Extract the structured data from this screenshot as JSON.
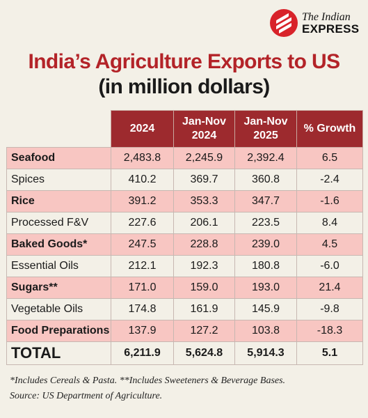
{
  "brand": {
    "line1": "The Indian",
    "line2": "EXPRESS"
  },
  "chart_data": {
    "type": "table",
    "title": "India’s Agriculture Exports to US",
    "subtitle": "(in million dollars)",
    "columns": [
      "2024",
      "Jan-Nov 2024",
      "Jan-Nov 2025",
      "% Growth"
    ],
    "rows": [
      {
        "label": "Seafood",
        "values": [
          "2,483.8",
          "2,245.9",
          "2,392.4",
          "6.5"
        ]
      },
      {
        "label": "Spices",
        "values": [
          "410.2",
          "369.7",
          "360.8",
          "-2.4"
        ]
      },
      {
        "label": "Rice",
        "values": [
          "391.2",
          "353.3",
          "347.7",
          "-1.6"
        ]
      },
      {
        "label": "Processed F&V",
        "values": [
          "227.6",
          "206.1",
          "223.5",
          "8.4"
        ]
      },
      {
        "label": "Baked Goods*",
        "values": [
          "247.5",
          "228.8",
          "239.0",
          "4.5"
        ]
      },
      {
        "label": "Essential Oils",
        "values": [
          "212.1",
          "192.3",
          "180.8",
          "-6.0"
        ]
      },
      {
        "label": "Sugars**",
        "values": [
          "171.0",
          "159.0",
          "193.0",
          "21.4"
        ]
      },
      {
        "label": "Vegetable Oils",
        "values": [
          "174.8",
          "161.9",
          "145.9",
          "-9.8"
        ]
      },
      {
        "label": "Food Preparations",
        "values": [
          "137.9",
          "127.2",
          "103.8",
          "-18.3"
        ]
      }
    ],
    "total": {
      "label": "TOTAL",
      "values": [
        "6,211.9",
        "5,624.8",
        "5,914.3",
        "5.1"
      ]
    }
  },
  "notes": {
    "footnotes": "*Includes Cereals & Pasta.   **Includes Sweeteners & Beverage Bases.",
    "source": "Source: US Department of Agriculture."
  },
  "colors": {
    "header_bg": "#9d2a2e",
    "title_red": "#b32328",
    "row_highlight": "#f8c6c2",
    "background": "#f3f0e7"
  }
}
